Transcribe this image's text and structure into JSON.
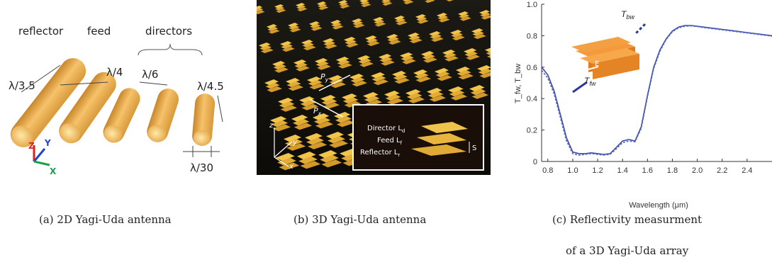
{
  "panel_a": {
    "labels": {
      "reflector": "reflector",
      "feed": "feed",
      "directors": "directors"
    },
    "dims": {
      "reflector_len": "λ/3.5",
      "feed_len": "λ/4",
      "spacing": "λ/6",
      "director_len": "λ/4.5",
      "width": "λ/30"
    },
    "axes": {
      "x": "X",
      "y": "Y",
      "z": "Z"
    },
    "caption": "(a) 2D Yagi-Uda antenna"
  },
  "panel_b": {
    "period_y": "P",
    "period_y_sub": "y",
    "period_x": "P",
    "period_x_sub": "x",
    "axes": {
      "x": "x",
      "y": "y",
      "z": "z"
    },
    "inset": {
      "director": "Director L",
      "director_sub": "d",
      "feed": "Feed L",
      "feed_sub": "f",
      "reflector": "Reflector L",
      "reflector_sub": "r",
      "spacing": "S"
    },
    "caption": "(b) 3D Yagi-Uda antenna"
  },
  "panel_c": {
    "caption_line1": "(c) Reflectivity measurment",
    "caption_line2": "of a 3D Yagi-Uda array",
    "inset": {
      "backward": "T",
      "backward_sub": "bw",
      "forward": "T",
      "forward_sub": "fw",
      "field": "E"
    }
  },
  "chart_data": {
    "type": "line",
    "xlabel": "Wavelength (μm)",
    "ylabel": "T_fw, T_bw",
    "xlim": [
      0.75,
      2.6
    ],
    "ylim": [
      0,
      1.0
    ],
    "xticks": [
      "0.8",
      "1.0",
      "1.2",
      "1.4",
      "1.6",
      "1.8",
      "2.0",
      "2.2",
      "2.4"
    ],
    "yticks": [
      "0",
      "0.2",
      "0.4",
      "0.6",
      "0.8",
      "1.0"
    ],
    "series": [
      {
        "style": "solid",
        "color": "#3a4aa6",
        "x": [
          0.75,
          0.8,
          0.85,
          0.9,
          0.95,
          1.0,
          1.05,
          1.1,
          1.15,
          1.2,
          1.25,
          1.3,
          1.35,
          1.4,
          1.45,
          1.5,
          1.55,
          1.6,
          1.65,
          1.7,
          1.75,
          1.8,
          1.85,
          1.9,
          1.95,
          2.0,
          2.05,
          2.1,
          2.2,
          2.3,
          2.4,
          2.5,
          2.6
        ],
        "y": [
          0.6,
          0.55,
          0.45,
          0.3,
          0.15,
          0.06,
          0.05,
          0.05,
          0.055,
          0.05,
          0.045,
          0.05,
          0.09,
          0.13,
          0.14,
          0.13,
          0.22,
          0.42,
          0.6,
          0.71,
          0.78,
          0.83,
          0.855,
          0.865,
          0.865,
          0.86,
          0.855,
          0.85,
          0.84,
          0.83,
          0.82,
          0.81,
          0.8
        ]
      },
      {
        "style": "dashed",
        "color": "#5a6ac0",
        "x": [
          0.75,
          0.8,
          0.85,
          0.9,
          0.95,
          1.0,
          1.05,
          1.1,
          1.15,
          1.2,
          1.25,
          1.3,
          1.35,
          1.4,
          1.45,
          1.5,
          1.55,
          1.6,
          1.65,
          1.7,
          1.75,
          1.8,
          1.85,
          1.9,
          1.95,
          2.0,
          2.05,
          2.1,
          2.2,
          2.3,
          2.4,
          2.5,
          2.6
        ],
        "y": [
          0.58,
          0.53,
          0.43,
          0.28,
          0.13,
          0.05,
          0.04,
          0.045,
          0.05,
          0.045,
          0.04,
          0.045,
          0.08,
          0.12,
          0.13,
          0.125,
          0.21,
          0.41,
          0.59,
          0.7,
          0.775,
          0.825,
          0.85,
          0.86,
          0.862,
          0.858,
          0.852,
          0.847,
          0.837,
          0.827,
          0.817,
          0.807,
          0.797
        ]
      }
    ]
  }
}
